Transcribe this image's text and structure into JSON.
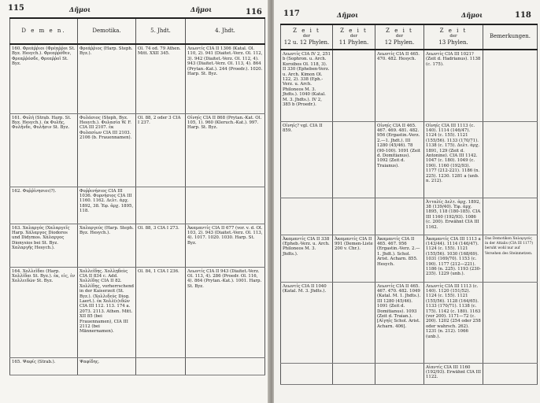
{
  "left_page": {
    "page_left": "115",
    "page_right": "116",
    "running_head_left": "Δῆμοι",
    "running_head_right": "Δῆμοι",
    "headers": [
      "D e m e n.",
      "Demotika.",
      "5. Jhdt.",
      "4. Jhdt."
    ],
    "rows": [
      [
        "160. Φρεάῤῥιοι (Φρέαῤῥοι St. Byz. Hesych.). Φρεαῤῥόθεν, Φρεαῤῥόσδε, Φρεαῤῥοῖ St. Byz.",
        "Φρεάῤῥιος (Harp. Steph. Byz.).",
        "Ol. 74 od. 79 Athen. Mitt. XXII 345.",
        "Λεωντίς CIA II 1306 (Katal. Ol. 110, 2). 941 (Diaitet.-Verz. Ol. 112, 3). 942 (Diaitet.-Verz. Ol. 112, 4). 943 (Diaitet.-Verz. Ol. 113, 4). 864 (Prytan.-Kat.). 244 (Proedr.). 1020. Harp. St. Byz."
      ],
      [
        "161. Φυλή (Strab. Harp. St. Byz. Hesych.). ἐκ Φυλῆς, Φυλῆνδε, Φυλῆσιν St. Byz.",
        "Φυλάσιος (Steph. Byz. Hesych.). Φυλασία W. F. CIA III 2107. ἐκ Φυλασίων CIA III 2103. 2106 (b. Frauennamen).",
        "Ol. 88, 2 oder 3 CIA I 237.",
        "Οἰνηίς CIA II 868 (Prytan.-Kat. Ol. 105, 1). 960 (Kleruch.-Kat.). 997. Harp. St. Byz."
      ],
      [
        "162. Φυῤῥίνησιοι(?).",
        "Φυῤῥινήσιος CIA III 1036. Φυρνήσιος CIA III 1160. 1162. Δελτ. ἀρχ. 1892, 38. Ἐφ. ἀρχ. 1895, 118.",
        "",
        ""
      ],
      [
        "163. Χαλαργός (Χαλαργεῖς Harp. Χάλαργος Diodoros und Didymos. Χάλαργος Dionysios bei St. Byz. Χαλαργῆς Hesych.).",
        "Χαλαργεύς (Harp. Steph. Byz. Hesych.).",
        "Ol. 88, 3 CIA I 273.",
        "Ἀκαμαντίς CIA II 677 (vor. v. d. Ol. 103, 2). 943 (Diaitet.-Verz. Ol. 113, 4). 1017. 1020. 1030. Harp. St. Byz."
      ],
      [
        "164. Χολλεῖδαι (Harp. Χολλίδαι St. Byz.). ἐκ, εἰς, ἐν Χολλειδῶν St. Byz.",
        "Χολλείδης. Χολλῃδεὺς CIA II 834 c. Add. Χολλίδης CIA II 82. Χολλίδης, vorherrschend in der Kaiserzeit (St. Byz.). (Χολλιδεύς Diog. Laert.). ἐκ Χολλ(ε)ιδῶν CIA III 112. 113. 174 a. 2073. 2113. Athen. Mitt. XII 85 (bei Frauennamen), CIA III 2112 (bei Männernamen).",
        "Ol. 84, 1 CIA I 236.",
        "Λεωντίς CIA II 943 (Diaitet.-Verz. Ol. 113, 4). 286 (Proedr. Ol. 116, 4). 864 (Prytan.-Kat.). 1001. Harp. St. Byz."
      ],
      [
        "165. Ψαφίς (Strab.).",
        "Ψαφίδης.",
        "",
        ""
      ]
    ]
  },
  "right_page": {
    "page_left": "117",
    "page_right": "118",
    "running_head_left": "Δῆμοι",
    "running_head_right": "Δῆμοι",
    "headers": [
      {
        "a": "Z e i t",
        "b": "der",
        "c": "12 u. 12 Phylen."
      },
      {
        "a": "Z e i t",
        "b": "der",
        "c": "11 Phylen."
      },
      {
        "a": "Z e i t",
        "b": "der",
        "c": "12 Phylen."
      },
      {
        "a": "Z e i t",
        "b": "der",
        "c": "13 Phylen."
      },
      {
        "a": "Bemerkungen.",
        "b": "",
        "c": ""
      }
    ],
    "rows": [
      [
        "Λεωντίς CIA IV 2, 251 b (Sophron. u. Arch. Koroibos Ol. 118, 3). II 330 (Epheben-Verz. u. Arch. Kimon Ol. 122, 2). 338 (Eph.-Verz. u. Arch. Philoneos M. 3. Jhdts.). 1040 (Katal. M. 3. Jhdts.). IV 2, 385 b (Proedr.).",
        "",
        "Λεωντίς CIA II 465. 470. 482. Hesych.",
        "Λεωντίς CIA III 1021? (Zeit d. Hadrianus). 1138 (c. 175).",
        ""
      ],
      [
        "Οἰνηίς? vgl. CIA II 859.",
        "",
        "Οἰνηίς CIA II 465. 467. 469. 481. 482. 956 (Ergastin.-Verz. 2.—1. Jhdt.). III 1280 (45/46). 78 (90-100). 1091 (Zeit d. Domitianus). 1092 (Zeit d. Traianus).",
        "Οἰνηίς CIA III 1113 (c. 140). 1114 (146/47). 1124 (c. 155). 1121 (155/56). 1133 (170/71). 1138 (c. 175). Δελτ. ἀρχ. 1891, 129 (Zeit d. Antonine). CIA III 1142. 1047 (c. 180). 1049 (c. 190). 1160 (192/93). 1177 (212-221). 1186 (n. 225). 1230. 1281 a (unb. n. 212).",
        ""
      ],
      [
        "",
        "",
        "",
        "Ἀτταλίς Δελτ. ἀρχ. 1892, 38 (139/40). Ἐφ. ἀρχ. 1895, 118 (180-185). CIA III 1160 (192/93). 1086 (c. 200). Erwähnt CIA III 1162.",
        ""
      ],
      [
        "Ἀκαμαντίς CIA II 338 (Epheb.-Verz. u. Arch. Philoneos M. 3. Jhdts.).",
        "Ἀκαμαντίς CIA II 991 (Demen-Liste 200 v. Chr.).",
        "Ἀκαμαντίς CIA II 465. 467. 956 (Ergastin.-Verz. 2.—1. Jhdt.). Schol. Arist. Acharn. 855. Hesych.",
        "Ἀκαμαντίς CIA III 1113 a (143/44). 1114 (146/47). 1124 (c. 155). 1121 (155/56). 1030 (168/69). 1031 (169/70). 1153 (c. 190). 1177 (212—221). 1186 (n. 225). 1193 (230-235). 1229 (unb.).",
        "Das Demotikon Χαλαργεύς in der Attalis (CIA III 1177) beruht wohl nur auf Versehen des Steinmetzen."
      ],
      [
        "Λεωντίς CIA II 1040 (Katal. M. 3. Jhdts.).",
        "",
        "Λεωντίς CIA II 465. 467. 470. 482. 1049 (Katal. M. 1. Jhdts.). III 1280 (45/46). 1091 (Zeit d. Domitianus). 1093 (Zeit d. Traian.). [Αἰγηίς Schol. Arist. Acharn. 406].",
        "Λεωντίς CIA III 1113 (c. 140). 1120 (151/52). 1124 (c. 155). 1121 (155/56). 1128 (164/65). 1133 (170/71). 1138 (c. 175). 1142 (c. 180). 1163 (vor 200). 1171—72 (c. 200). 1202 (254 oder 258 oder wahrsch. 262). 1231 (n. 212). 1066 (unb.).",
        ""
      ],
      [
        "",
        "",
        "",
        "Αἰαντίς CIA III 1160 (192/93). Erwähnt CIA III 1122.",
        ""
      ]
    ]
  }
}
